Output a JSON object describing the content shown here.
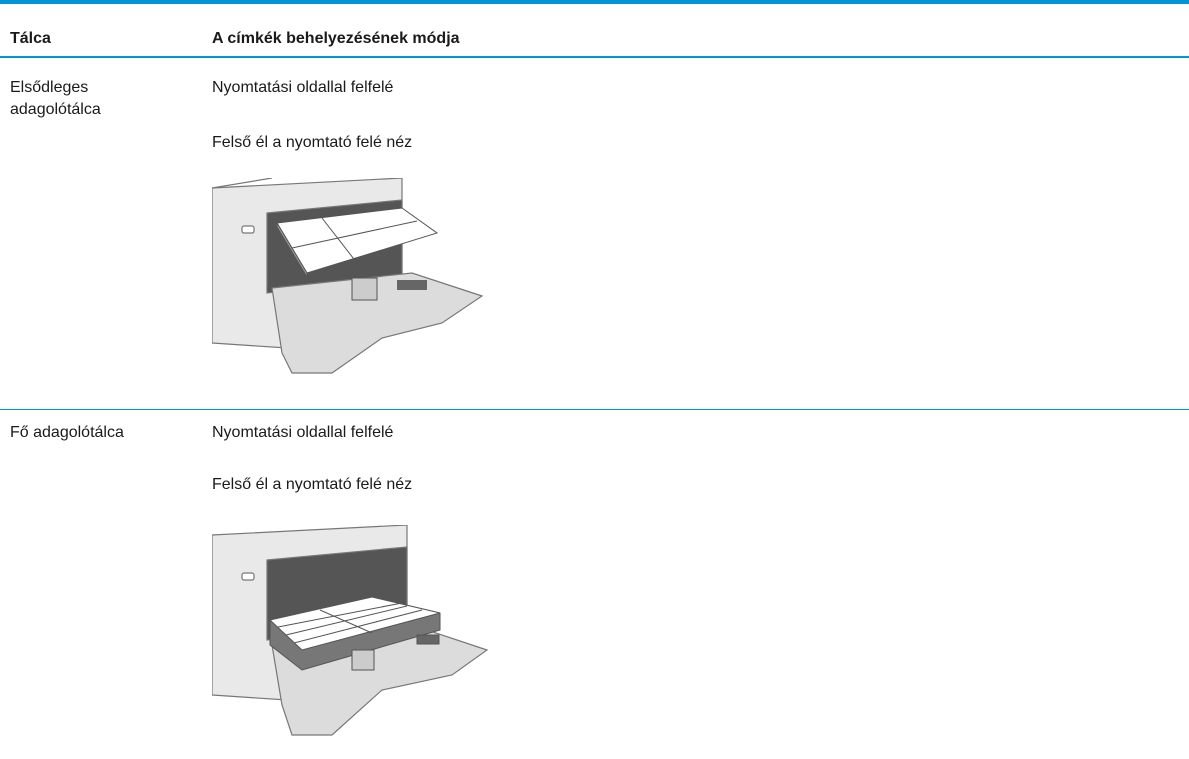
{
  "table": {
    "header": [
      "Tálca",
      "A címkék behelyezésének módja"
    ],
    "rows": [
      {
        "tray": "Elsődleges adagolótálca",
        "instructions": [
          "Nyomtatási oldallal felfelé",
          "Felső él a nyomtató felé néz"
        ]
      },
      {
        "tray": "Fő adagolótálca",
        "instructions": [
          "Nyomtatási oldallal felfelé",
          "Felső él a nyomtató felé néz"
        ]
      }
    ]
  }
}
